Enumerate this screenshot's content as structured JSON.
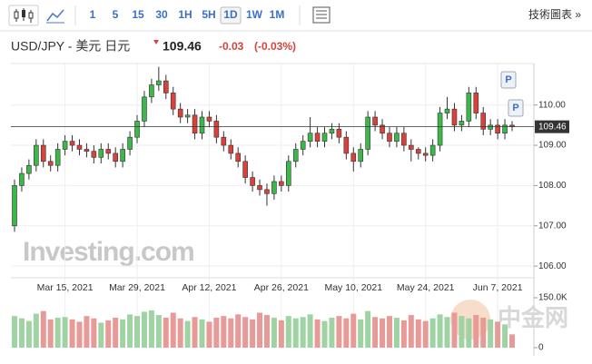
{
  "toolbar": {
    "intervals": [
      "1",
      "5",
      "15",
      "30",
      "1H",
      "5H",
      "1D",
      "1W",
      "1M"
    ],
    "active_interval": "1D",
    "chart_link": "技術圖表 »"
  },
  "chart_data": {
    "type": "candlestick",
    "title": "USD/JPY - 美元 日元",
    "last_price": 109.46,
    "change": -0.03,
    "change_percent": {
      "value": -0.03,
      "label": "(-0.03%)"
    },
    "watermark": "Investing.com",
    "annotations": [
      "P",
      "P"
    ],
    "source_watermark": "中金网",
    "up_color": "#3cb84a",
    "down_color": "#d9413a",
    "volume_up_color": "#9fd3a3",
    "volume_down_color": "#e79a97",
    "grid": true,
    "categories": [
      null,
      null,
      null,
      null,
      null,
      null,
      null,
      "Mar 15, 2021",
      null,
      null,
      null,
      null,
      null,
      null,
      null,
      null,
      null,
      "Mar 29, 2021",
      null,
      null,
      null,
      null,
      null,
      null,
      null,
      null,
      null,
      "Apr 12, 2021",
      null,
      null,
      null,
      null,
      null,
      null,
      null,
      null,
      null,
      "Apr 26, 2021",
      null,
      null,
      null,
      null,
      null,
      null,
      null,
      null,
      null,
      "May 10, 2021",
      null,
      null,
      null,
      null,
      null,
      null,
      null,
      null,
      null,
      "May 24, 2021",
      null,
      null,
      null,
      null,
      null,
      null,
      null,
      null,
      null,
      "Jun 7, 2021",
      null,
      null
    ],
    "open": [
      107.0,
      108.0,
      108.3,
      108.5,
      109.0,
      108.6,
      108.5,
      108.9,
      109.1,
      109.0,
      108.9,
      108.85,
      108.7,
      108.9,
      108.8,
      108.6,
      108.9,
      109.2,
      109.6,
      110.2,
      110.5,
      110.6,
      110.3,
      109.9,
      109.7,
      109.75,
      109.3,
      109.7,
      109.6,
      109.2,
      109.0,
      108.8,
      108.6,
      108.2,
      108.0,
      107.9,
      107.8,
      108.1,
      108.0,
      108.6,
      108.9,
      109.1,
      109.3,
      109.1,
      109.3,
      109.4,
      109.2,
      108.8,
      108.6,
      108.9,
      109.7,
      109.5,
      109.3,
      109.1,
      109.3,
      109.0,
      108.9,
      108.8,
      108.75,
      109.0,
      109.8,
      109.9,
      109.5,
      109.6,
      110.3,
      109.8,
      109.4,
      109.5,
      109.3,
      109.5
    ],
    "high": [
      108.15,
      108.45,
      108.65,
      109.15,
      109.15,
      108.75,
      109.05,
      109.25,
      109.25,
      109.15,
      109.05,
      109.0,
      109.05,
      109.05,
      108.95,
      109.05,
      109.35,
      109.75,
      110.35,
      110.65,
      110.95,
      110.75,
      110.45,
      110.05,
      109.9,
      109.9,
      109.85,
      109.85,
      109.75,
      109.35,
      109.15,
      108.95,
      108.75,
      108.35,
      108.15,
      108.05,
      108.25,
      108.25,
      108.75,
      109.05,
      109.25,
      109.7,
      109.45,
      109.45,
      109.55,
      109.55,
      109.35,
      108.95,
      109.05,
      109.85,
      109.85,
      109.65,
      109.45,
      109.45,
      109.45,
      109.15,
      108.95,
      108.95,
      109.15,
      109.95,
      110.2,
      110.05,
      109.75,
      110.45,
      110.45,
      109.95,
      109.65,
      109.65,
      109.65,
      109.6
    ],
    "low": [
      106.85,
      107.85,
      108.15,
      108.35,
      108.45,
      108.35,
      108.35,
      108.75,
      108.85,
      108.75,
      108.7,
      108.55,
      108.55,
      108.65,
      108.45,
      108.45,
      108.75,
      109.05,
      109.45,
      110.05,
      110.35,
      110.15,
      109.75,
      109.55,
      109.55,
      109.15,
      109.15,
      109.45,
      109.05,
      108.85,
      108.65,
      108.45,
      108.05,
      107.85,
      107.75,
      107.5,
      107.65,
      107.85,
      107.85,
      108.45,
      108.75,
      108.95,
      108.95,
      108.95,
      109.15,
      109.05,
      108.65,
      108.35,
      108.45,
      108.75,
      109.35,
      109.15,
      108.95,
      108.95,
      108.85,
      108.6,
      108.65,
      108.6,
      108.6,
      108.85,
      109.65,
      109.35,
      109.35,
      109.45,
      109.65,
      109.25,
      109.25,
      109.15,
      109.15,
      109.35
    ],
    "close": [
      108.0,
      108.3,
      108.5,
      109.0,
      108.6,
      108.5,
      108.9,
      109.1,
      109.0,
      108.9,
      108.85,
      108.7,
      108.9,
      108.8,
      108.6,
      108.9,
      109.2,
      109.6,
      110.2,
      110.5,
      110.6,
      110.3,
      109.9,
      109.7,
      109.75,
      109.3,
      109.7,
      109.6,
      109.2,
      109.0,
      108.8,
      108.6,
      108.2,
      108.0,
      107.9,
      107.8,
      108.1,
      108.0,
      108.6,
      108.9,
      109.1,
      109.3,
      109.1,
      109.3,
      109.4,
      109.2,
      108.8,
      108.6,
      108.9,
      109.7,
      109.5,
      109.3,
      109.1,
      109.3,
      109.0,
      108.9,
      108.8,
      108.75,
      109.0,
      109.8,
      109.9,
      109.5,
      109.6,
      110.3,
      109.8,
      109.4,
      109.5,
      109.3,
      109.5,
      109.46
    ],
    "volume": [
      95000,
      88000,
      80000,
      102000,
      110000,
      85000,
      90000,
      92000,
      85000,
      78000,
      95000,
      88000,
      75000,
      82000,
      90000,
      85000,
      100000,
      95000,
      108000,
      112000,
      98000,
      90000,
      105000,
      88000,
      80000,
      92000,
      85000,
      78000,
      90000,
      95000,
      88000,
      100000,
      92000,
      85000,
      105000,
      98000,
      90000,
      82000,
      95000,
      88000,
      92000,
      100000,
      85000,
      80000,
      90000,
      95000,
      88000,
      102000,
      85000,
      110000,
      92000,
      88000,
      95000,
      90000,
      82000,
      98000,
      85000,
      80000,
      88000,
      100000,
      92000,
      105000,
      95000,
      88000,
      98000,
      90000,
      85000,
      78000,
      70000,
      40000
    ],
    "ylim": [
      105.71,
      111.03
    ],
    "yticks": [
      {
        "value": 106,
        "label": "106.00"
      },
      {
        "value": 107,
        "label": "107.00"
      },
      {
        "value": 108,
        "label": "108.00"
      },
      {
        "value": 109,
        "label": "109.00"
      },
      {
        "value": 110,
        "label": "110.00"
      }
    ],
    "y2lim": [
      0,
      150000
    ],
    "y2ticks": [
      0,
      {
        "value": 150000,
        "label": "150.0K"
      }
    ]
  }
}
